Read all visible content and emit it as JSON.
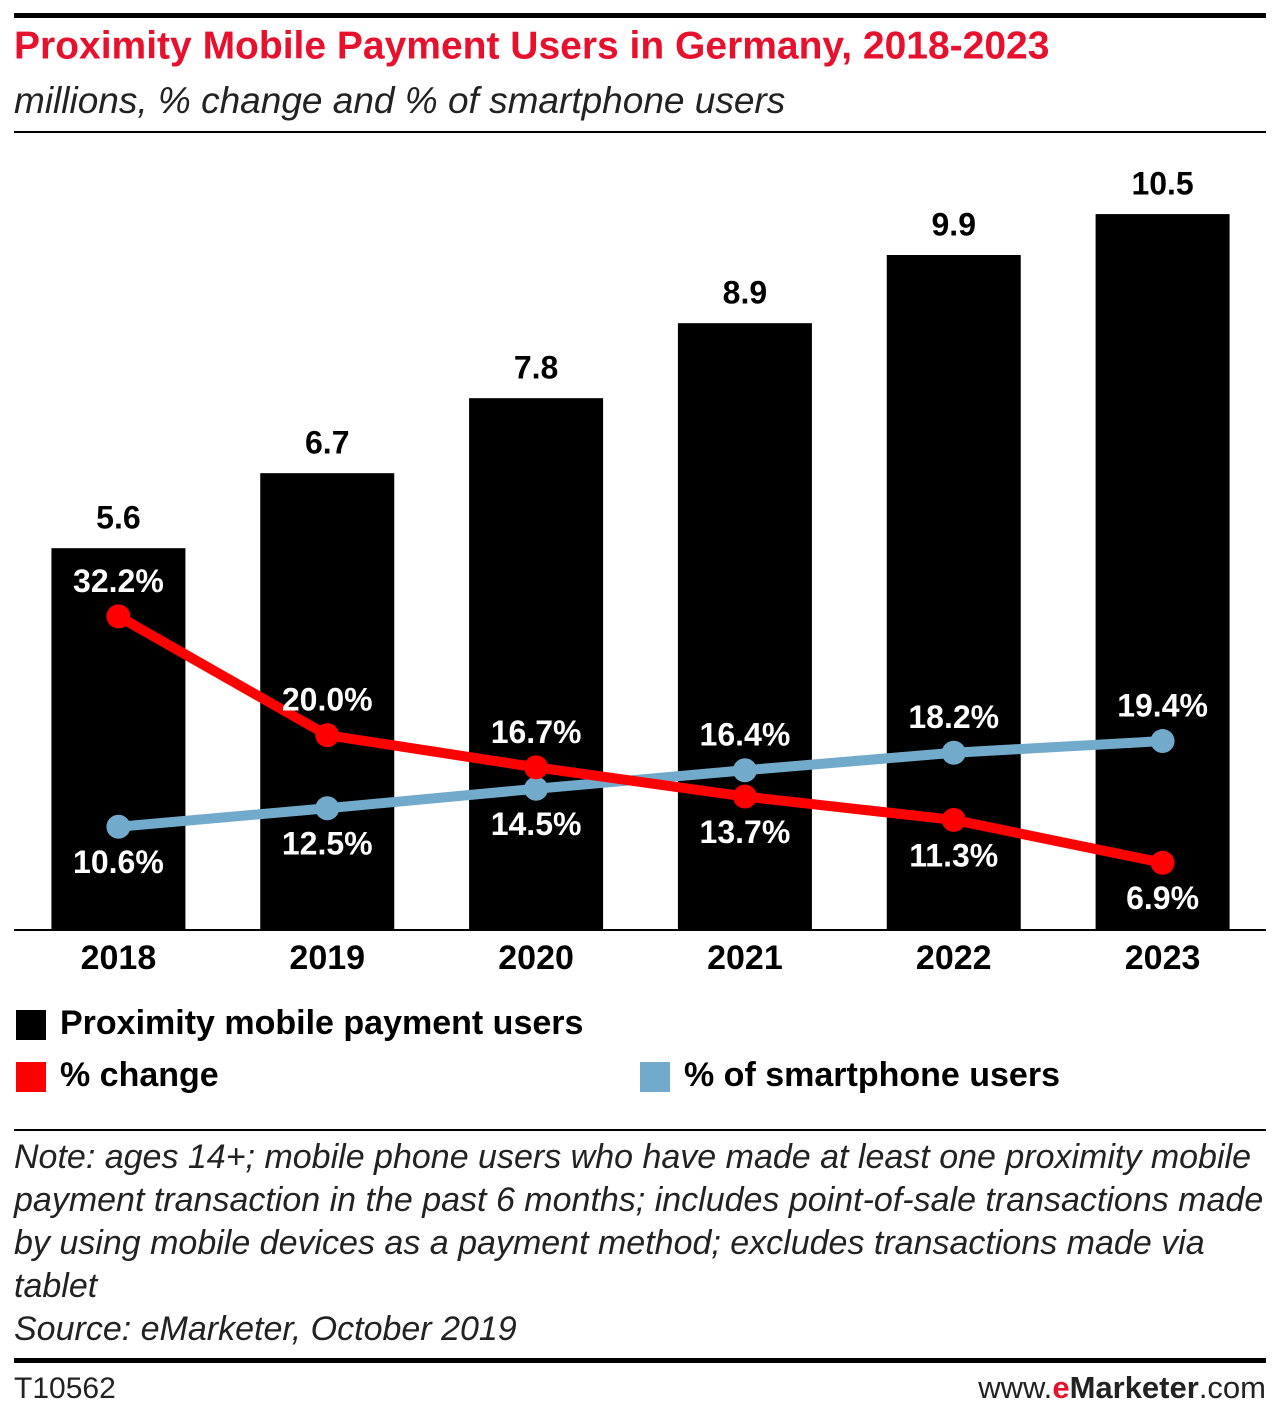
{
  "chart_data": {
    "type": "bar",
    "title": "Proximity Mobile Payment Users in Germany, 2018-2023",
    "subtitle": "millions, % change and % of smartphone users",
    "categories": [
      "2018",
      "2019",
      "2020",
      "2021",
      "2022",
      "2023"
    ],
    "series": [
      {
        "name": "Proximity mobile payment users",
        "color": "#000000",
        "type": "bar",
        "values": [
          5.6,
          6.7,
          7.8,
          8.9,
          9.9,
          10.5
        ]
      },
      {
        "name": "% change",
        "color": "#ff0000",
        "type": "line",
        "axis": "y2",
        "values": [
          32.2,
          20.0,
          16.7,
          13.7,
          11.3,
          6.9
        ],
        "value_labels": [
          "32.2%",
          "20.0%",
          "16.7%",
          "13.7%",
          "11.3%",
          "6.9%"
        ]
      },
      {
        "name": "% of smartphone users",
        "color": "#72aacb",
        "type": "line",
        "axis": "y2",
        "values": [
          10.6,
          12.5,
          14.5,
          16.4,
          18.2,
          19.4
        ],
        "value_labels": [
          "10.6%",
          "12.5%",
          "14.5%",
          "16.4%",
          "18.2%",
          "19.4%"
        ]
      }
    ],
    "ylim": [
      0,
      11
    ],
    "y2lim": [
      0,
      77
    ],
    "note": "Note: ages 14+; mobile phone users who have made at least one proximity mobile payment transaction in the past 6 months; includes point-of-sale transactions made by using mobile devices as a payment method; excludes transactions made via tablet",
    "source": "Source: eMarketer, October 2019"
  },
  "footer": {
    "id": "T10562",
    "url": [
      "www.",
      "e",
      "Marketer",
      ".com"
    ]
  }
}
